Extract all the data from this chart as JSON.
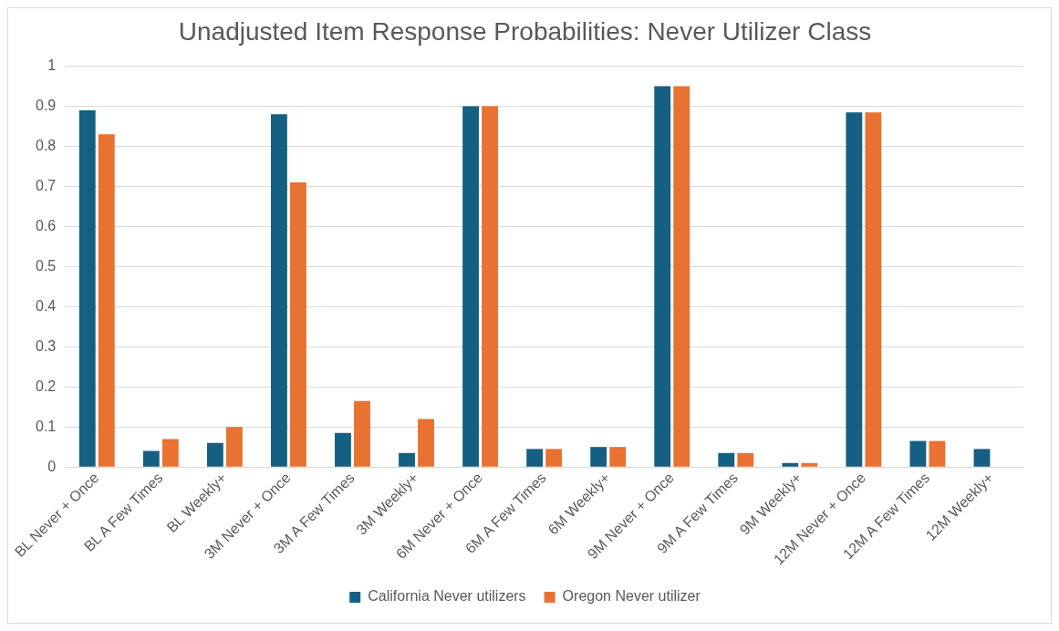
{
  "chart_data": {
    "type": "bar",
    "title": "Unadjusted Item Response Probabilities: Never Utilizer Class",
    "categories": [
      "BL Never + Once",
      "BL A Few Times",
      "BL Weekly+",
      "3M Never + Once",
      "3M A Few Times",
      "3M Weekly+",
      "6M Never + Once",
      "6M A Few Times",
      "6M Weekly+",
      "9M Never + Once",
      "9M A Few Times",
      "9M Weekly+",
      "12M Never + Once",
      "12M A Few Times",
      "12M Weekly+"
    ],
    "series": [
      {
        "name": "California Never utilizers",
        "color": "#156082",
        "values": [
          0.89,
          0.04,
          0.06,
          0.88,
          0.085,
          0.035,
          0.9,
          0.045,
          0.05,
          0.95,
          0.035,
          0.01,
          0.885,
          0.065,
          0.045
        ]
      },
      {
        "name": "Oregon Never utilizer",
        "color": "#e97132",
        "values": [
          0.83,
          0.07,
          0.1,
          0.71,
          0.165,
          0.12,
          0.9,
          0.045,
          0.05,
          0.95,
          0.035,
          0.01,
          0.885,
          0.065,
          null
        ]
      }
    ],
    "ylim": [
      0,
      1
    ],
    "yticks": [
      0,
      0.1,
      0.2,
      0.3,
      0.4,
      0.5,
      0.6,
      0.7,
      0.8,
      0.9,
      1
    ],
    "grid": "y",
    "legend": "bottom"
  }
}
